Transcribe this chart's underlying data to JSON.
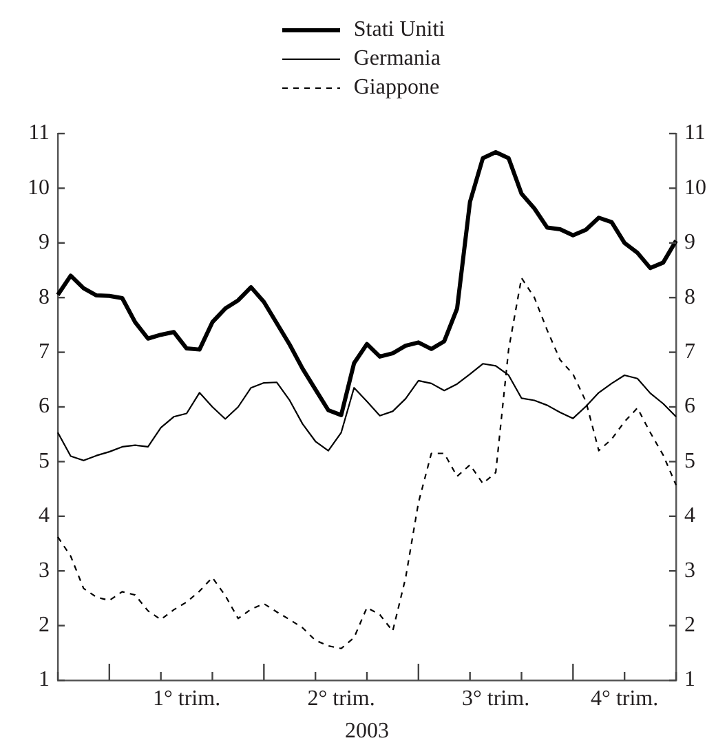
{
  "chart_data": {
    "type": "line",
    "xlabel": "2003",
    "legend": "top",
    "grid": false,
    "marker": "none",
    "categories": [
      null,
      null,
      null,
      null,
      null,
      null,
      null,
      null,
      null,
      null,
      "1° trim.",
      null,
      null,
      null,
      null,
      null,
      null,
      null,
      null,
      null,
      null,
      null,
      "2° trim.",
      null,
      null,
      null,
      null,
      null,
      null,
      null,
      null,
      null,
      null,
      null,
      "3° trim.",
      null,
      null,
      null,
      null,
      null,
      null,
      null,
      null,
      null,
      "4° trim.",
      null,
      null,
      null,
      null
    ],
    "ylim": [
      1,
      11
    ],
    "yticks": [
      1,
      2,
      3,
      4,
      5,
      6,
      7,
      8,
      9,
      10,
      11
    ],
    "y2lim": [
      1,
      11
    ],
    "y2ticks": [
      1,
      2,
      3,
      4,
      5,
      6,
      7,
      8,
      9,
      10,
      11
    ],
    "series": [
      {
        "name": "Stati Uniti",
        "color": "#000000",
        "line_style": "solid",
        "values": [
          8.05,
          8.4,
          8.17,
          8.04,
          8.03,
          7.99,
          7.55,
          7.25,
          7.32,
          7.37,
          7.07,
          7.05,
          7.55,
          7.8,
          7.95,
          8.19,
          7.92,
          7.53,
          7.14,
          6.7,
          6.32,
          5.94,
          5.85,
          6.8,
          7.15,
          6.92,
          6.98,
          7.12,
          7.18,
          7.06,
          7.2,
          7.8,
          9.75,
          10.55,
          10.66,
          10.55,
          9.9,
          9.63,
          9.28,
          9.25,
          9.14,
          9.24,
          9.46,
          9.38,
          9.0,
          8.82,
          8.54,
          8.64,
          9.04
        ]
      },
      {
        "name": "Germania",
        "color": "#000000",
        "line_style": "solid",
        "values": [
          5.53,
          5.1,
          5.02,
          5.11,
          5.18,
          5.27,
          5.3,
          5.27,
          5.62,
          5.82,
          5.88,
          6.26,
          6.0,
          5.78,
          6.0,
          6.35,
          6.44,
          6.45,
          6.12,
          5.69,
          5.37,
          5.2,
          5.53,
          6.35,
          6.1,
          5.84,
          5.92,
          6.15,
          6.48,
          6.43,
          6.3,
          6.42,
          6.6,
          6.79,
          6.75,
          6.58,
          6.16,
          6.12,
          6.03,
          5.9,
          5.79,
          6.01,
          6.26,
          6.43,
          6.58,
          6.52,
          6.25,
          6.06,
          5.82
        ]
      },
      {
        "name": "Giappone",
        "color": "#000000",
        "line_style": "dashed",
        "values": [
          3.62,
          3.27,
          2.68,
          2.52,
          2.46,
          2.62,
          2.56,
          2.27,
          2.11,
          2.29,
          2.43,
          2.63,
          2.88,
          2.55,
          2.13,
          2.3,
          2.4,
          2.25,
          2.11,
          1.96,
          1.73,
          1.63,
          1.58,
          1.78,
          2.33,
          2.2,
          1.9,
          2.87,
          4.25,
          5.15,
          5.15,
          4.73,
          4.94,
          4.6,
          4.8,
          7.05,
          8.36,
          8.0,
          7.4,
          6.86,
          6.6,
          6.1,
          5.2,
          5.41,
          5.73,
          5.98,
          5.53,
          5.12,
          4.57
        ]
      }
    ]
  }
}
